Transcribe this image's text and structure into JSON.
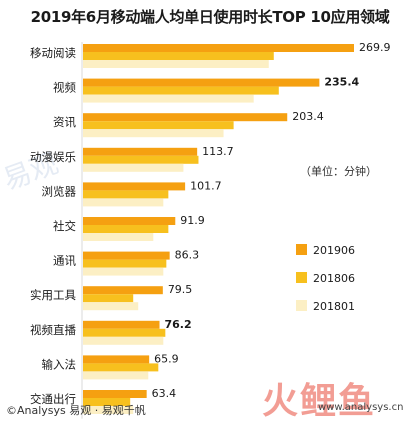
{
  "title": "2019年6月移动端人均单日使用时长TOP 10应用领域",
  "unit_note": "（单位：分钟）",
  "footer": {
    "source": "©Analysys 易观 · 易观千帆",
    "url": "www.analysys.cn"
  },
  "watermark": {
    "logo_text": "火鲤鱼",
    "side_text": "易观"
  },
  "colors": {
    "series_201906": "#F5A011",
    "series_201806": "#F7C01E",
    "series_201801": "#FCEFC4",
    "text": "#1a1a1a"
  },
  "chart_data": {
    "type": "bar",
    "orientation": "horizontal",
    "title": "2019年6月移动端人均单日使用时长TOP 10应用领域",
    "unit": "（单位：分钟）",
    "categories": [
      "移动阅读",
      "视频",
      "资讯",
      "动漫娱乐",
      "浏览器",
      "社交",
      "通讯",
      "实用工具",
      "视频直播",
      "输入法",
      "交通出行"
    ],
    "series": [
      {
        "name": "201906",
        "color": "#F5A011",
        "values": [
          269.9,
          235.4,
          203.4,
          113.7,
          101.7,
          91.9,
          86.3,
          79.5,
          76.2,
          65.9,
          63.4
        ]
      },
      {
        "name": "201806",
        "color": "#F7C01E",
        "values": [
          190,
          195,
          150,
          115,
          85,
          85,
          83,
          50,
          82,
          75,
          47
        ]
      },
      {
        "name": "201801",
        "color": "#FCEFC4",
        "values": [
          185,
          170,
          140,
          100,
          80,
          70,
          80,
          55,
          80,
          65,
          50
        ]
      }
    ],
    "data_labels": [
      "269.9",
      "235.4",
      "203.4",
      "113.7",
      "101.7",
      "91.9",
      "86.3",
      "79.5",
      "76.2",
      "65.9",
      "63.4"
    ],
    "bold_labels": [
      1,
      8
    ],
    "xlim": [
      0,
      300
    ],
    "axis_visible": false,
    "grid": false,
    "legend_position": "right",
    "legend": [
      "201906",
      "201806",
      "201801"
    ]
  }
}
